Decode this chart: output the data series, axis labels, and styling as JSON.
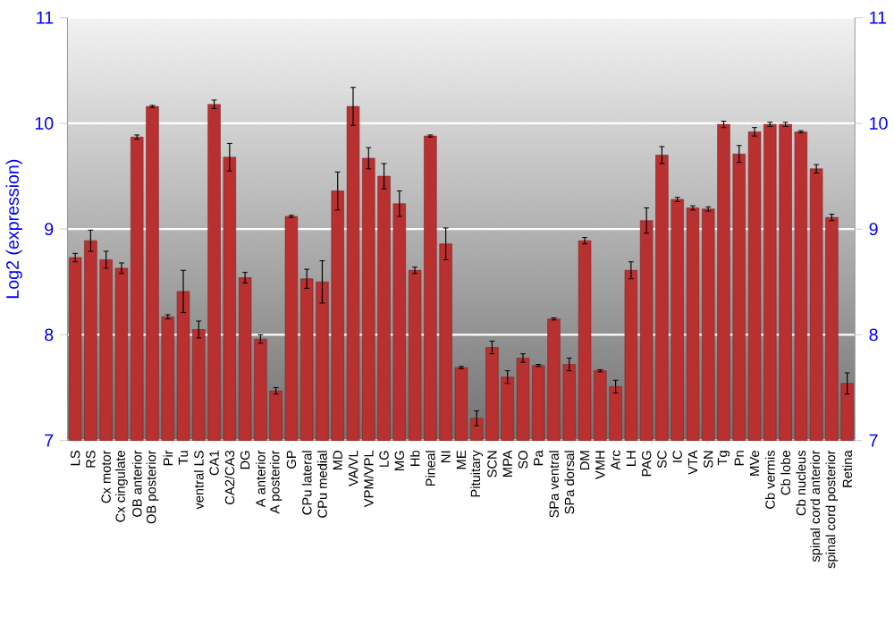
{
  "chart_data": {
    "type": "bar",
    "ylabel": "Log2 (expression)",
    "categories": [
      "LS",
      "RS",
      "Cx motor",
      "Cx cingulate",
      "OB anterior",
      "OB posterior",
      "Pir",
      "Tu",
      "ventral LS",
      "CA1",
      "CA2/CA3",
      "DG",
      "A anterior",
      "A posterior",
      "GP",
      "CPu lateral",
      "CPu medial",
      "MD",
      "VA/VL",
      "VPM/VPL",
      "LG",
      "MG",
      "Hb",
      "Pineal",
      "NI",
      "ME",
      "Pituitary",
      "SCN",
      "MPA",
      "SO",
      "Pa",
      "SPa ventral",
      "SPa dorsal",
      "DM",
      "VMH",
      "Arc",
      "LH",
      "PAG",
      "SC",
      "IC",
      "VTA",
      "SN",
      "Tg",
      "Pn",
      "MVe",
      "Cb vermis",
      "Cb lobe",
      "Cb nucleus",
      "spinal cord anterior",
      "spinal cord posterior",
      "Retina"
    ],
    "values": [
      8.73,
      8.89,
      8.71,
      8.63,
      9.87,
      10.16,
      8.17,
      8.41,
      8.05,
      10.18,
      9.68,
      8.54,
      7.96,
      7.47,
      9.12,
      8.53,
      8.5,
      9.36,
      10.16,
      9.67,
      9.5,
      9.24,
      8.61,
      9.88,
      8.86,
      7.69,
      7.21,
      7.88,
      7.6,
      7.78,
      7.71,
      8.15,
      7.72,
      8.89,
      7.66,
      7.51,
      8.61,
      9.08,
      9.7,
      9.28,
      9.2,
      9.19,
      9.99,
      9.71,
      9.92,
      9.99,
      9.99,
      9.92,
      9.57,
      9.11,
      7.54
    ],
    "errors": [
      0.04,
      0.1,
      0.08,
      0.05,
      0.02,
      0.01,
      0.02,
      0.2,
      0.08,
      0.04,
      0.13,
      0.05,
      0.04,
      0.03,
      0.01,
      0.09,
      0.2,
      0.18,
      0.18,
      0.1,
      0.12,
      0.12,
      0.03,
      0.01,
      0.15,
      0.01,
      0.07,
      0.06,
      0.06,
      0.04,
      0.01,
      0.01,
      0.06,
      0.03,
      0.01,
      0.06,
      0.08,
      0.12,
      0.08,
      0.02,
      0.02,
      0.02,
      0.03,
      0.08,
      0.04,
      0.02,
      0.02,
      0.01,
      0.04,
      0.03,
      0.1
    ],
    "color": "#b83030",
    "ylim": [
      7,
      11
    ],
    "yticks": [
      7,
      8,
      9,
      10,
      11
    ],
    "y2lim": [
      7,
      11
    ],
    "y2ticks": [
      7,
      8,
      9,
      10,
      11
    ],
    "grid": "y"
  }
}
